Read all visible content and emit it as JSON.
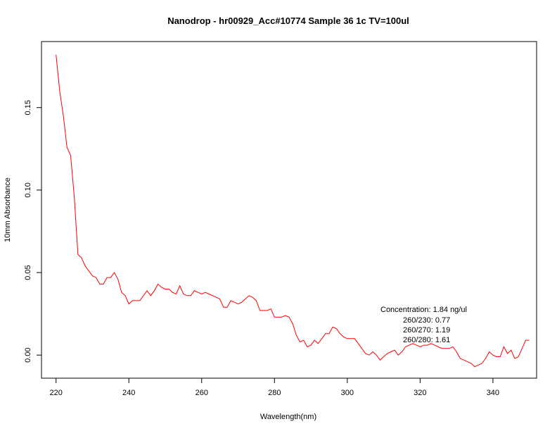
{
  "chart_data": {
    "type": "line",
    "title": "Nanodrop - hr00929_Acc#10774 Sample 36 1c TV=100ul",
    "xlabel": "Wavelength(nm)",
    "ylabel": "10mm Absorbance",
    "xlim": [
      216,
      352
    ],
    "ylim": [
      -0.014,
      0.19
    ],
    "x_ticks": [
      220,
      240,
      260,
      280,
      300,
      320,
      340
    ],
    "x_tick_labels": [
      "220",
      "240",
      "260",
      "280",
      "300",
      "320",
      "340"
    ],
    "y_ticks": [
      0.0,
      0.05,
      0.1,
      0.15
    ],
    "y_tick_labels": [
      "0.00",
      "0.05",
      "0.10",
      "0.15"
    ],
    "grid": false,
    "series": [
      {
        "color": "#ff0000",
        "x": [
          220,
          221,
          222,
          223,
          224,
          225,
          226,
          227,
          228,
          229,
          230,
          231,
          232,
          233,
          234,
          235,
          236,
          237,
          238,
          239,
          240,
          241,
          242,
          243,
          244,
          245,
          246,
          247,
          248,
          249,
          250,
          251,
          252,
          253,
          254,
          255,
          256,
          257,
          258,
          259,
          260,
          261,
          262,
          263,
          264,
          265,
          266,
          267,
          268,
          269,
          270,
          271,
          272,
          273,
          274,
          275,
          276,
          277,
          278,
          279,
          280,
          281,
          282,
          283,
          284,
          285,
          286,
          287,
          288,
          289,
          290,
          291,
          292,
          293,
          294,
          295,
          296,
          297,
          298,
          299,
          300,
          301,
          302,
          303,
          304,
          305,
          306,
          307,
          308,
          309,
          310,
          311,
          312,
          313,
          314,
          315,
          316,
          317,
          318,
          319,
          320,
          321,
          322,
          323,
          324,
          325,
          326,
          327,
          328,
          329,
          330,
          331,
          332,
          333,
          334,
          335,
          336,
          337,
          338,
          339,
          340,
          341,
          342,
          343,
          344,
          345,
          346,
          347,
          348,
          349,
          350
        ],
        "y": [
          0.182,
          0.16,
          0.145,
          0.126,
          0.121,
          0.096,
          0.061,
          0.059,
          0.054,
          0.051,
          0.048,
          0.047,
          0.043,
          0.043,
          0.047,
          0.047,
          0.05,
          0.046,
          0.038,
          0.036,
          0.031,
          0.033,
          0.033,
          0.033,
          0.036,
          0.039,
          0.036,
          0.039,
          0.043,
          0.041,
          0.04,
          0.04,
          0.038,
          0.037,
          0.042,
          0.037,
          0.036,
          0.036,
          0.039,
          0.038,
          0.037,
          0.038,
          0.037,
          0.036,
          0.035,
          0.034,
          0.029,
          0.029,
          0.033,
          0.032,
          0.031,
          0.032,
          0.034,
          0.036,
          0.035,
          0.033,
          0.027,
          0.027,
          0.027,
          0.028,
          0.023,
          0.023,
          0.023,
          0.024,
          0.023,
          0.019,
          0.012,
          0.008,
          0.009,
          0.005,
          0.006,
          0.009,
          0.007,
          0.01,
          0.013,
          0.013,
          0.017,
          0.016,
          0.013,
          0.011,
          0.01,
          0.01,
          0.01,
          0.007,
          0.004,
          0.001,
          0.0,
          0.002,
          0.0,
          -0.003,
          -0.001,
          0.001,
          0.002,
          0.003,
          0.0,
          0.002,
          0.005,
          0.006,
          0.007,
          0.006,
          0.005,
          0.006,
          0.006,
          0.007,
          0.006,
          0.005,
          0.004,
          0.004,
          0.004,
          0.005,
          0.002,
          -0.002,
          -0.003,
          -0.004,
          -0.005,
          -0.007,
          -0.006,
          -0.005,
          -0.002,
          0.002,
          0.0,
          -0.001,
          -0.001,
          0.005,
          0.001,
          0.003,
          -0.002,
          -0.001,
          0.004,
          0.009,
          0.009
        ]
      }
    ],
    "annotations": [
      "Concentration: 1.84 ng/ul",
      "260/230: 0.77",
      "260/270: 1.19",
      "260/280: 1.61"
    ]
  }
}
